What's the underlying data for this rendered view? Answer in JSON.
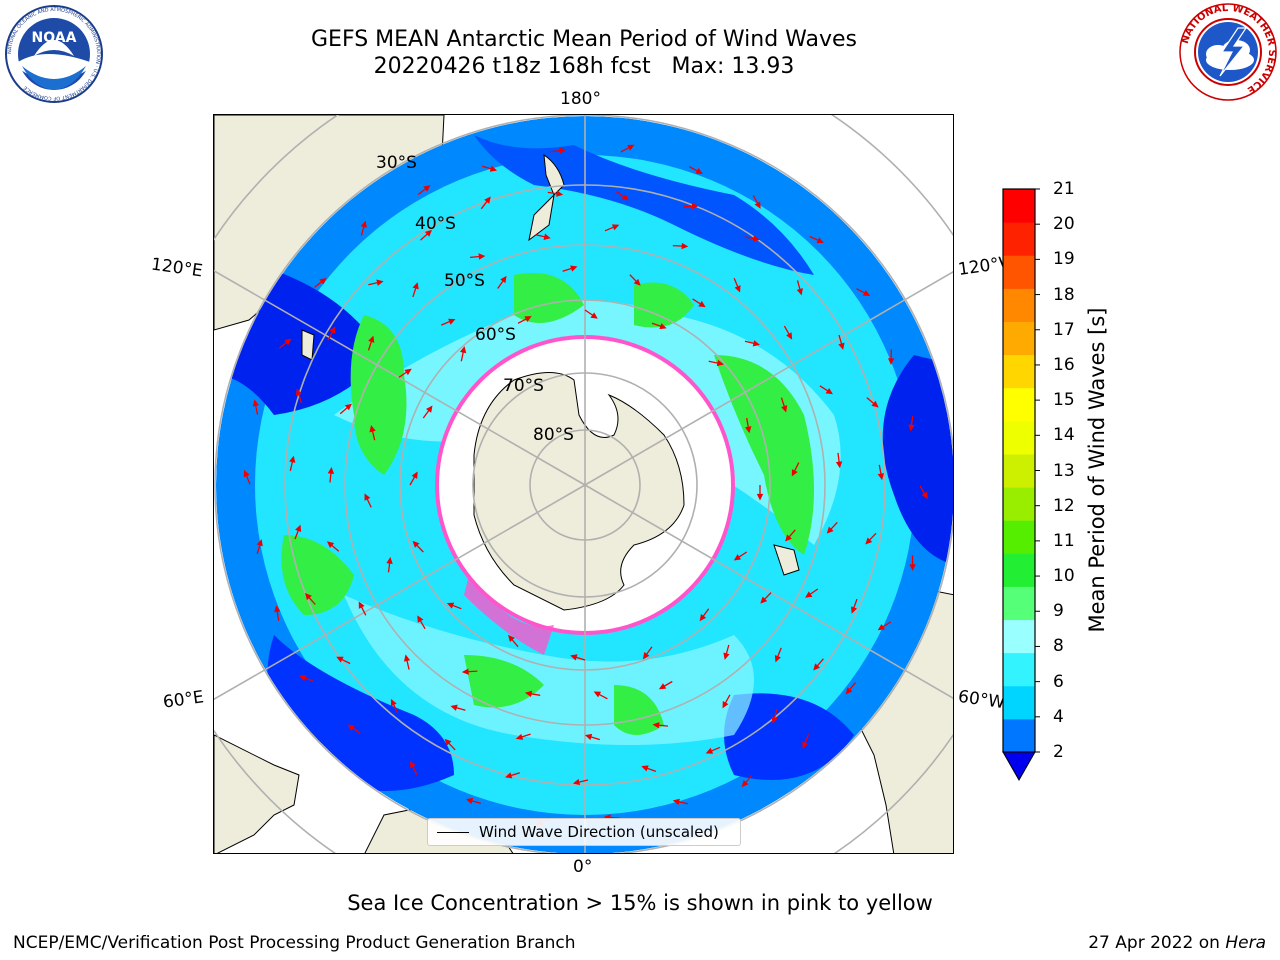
{
  "header": {
    "title_line1": "GEFS MEAN Antarctic Mean Period of Wind Waves",
    "title_line2": "20220426 t18z 168h fcst   Max: 13.93"
  },
  "logos": {
    "left": {
      "name": "noaa-logo",
      "text": "NOAA",
      "ring_text": "NATIONAL OCEANIC AND ATMOSPHERIC ADMINISTRATION · U.S. DEPARTMENT OF COMMERCE"
    },
    "right": {
      "name": "nws-logo",
      "ring_text": "NATIONAL WEATHER SERVICE"
    }
  },
  "map": {
    "longitude_labels": {
      "top": "180°",
      "bottom": "0°",
      "left_upper": "120°E",
      "left_lower": "60°E",
      "right_upper": "120°W",
      "right_lower": "60°W"
    },
    "latitude_labels": [
      "30°S",
      "40°S",
      "50°S",
      "60°S",
      "70°S",
      "80°S"
    ],
    "legend_label": "Wind Wave Direction (unscaled)",
    "colors": {
      "land": "#eeecda",
      "ocean_deep": "#0022ee",
      "ocean_mid": "#0088ff",
      "ocean_light": "#22e5ff",
      "ocean_pale": "#8dfaff",
      "green": "#33ee44",
      "arrow": "#ee0000",
      "ice_pink": "#ff55cc",
      "grid": "#b0b0b0"
    }
  },
  "colorbar": {
    "label": "Mean Period of Wind Waves [s]",
    "ticks": [
      "21",
      "20",
      "19",
      "18",
      "17",
      "16",
      "15",
      "14",
      "13",
      "12",
      "11",
      "10",
      "9",
      "8",
      "6",
      "4",
      "2"
    ],
    "colors": [
      "#0000ee",
      "#0077ff",
      "#00d5ff",
      "#33f3ff",
      "#99ffff",
      "#55ff77",
      "#22ee33",
      "#55ee00",
      "#99ee00",
      "#ccf000",
      "#eeff00",
      "#ffff00",
      "#ffd600",
      "#ffaa00",
      "#ff8800",
      "#ff5500",
      "#ff2200",
      "#ff0000"
    ]
  },
  "caption": "Sea Ice Concentration > 15% is shown in pink to yellow",
  "footer": {
    "left": "NCEP/EMC/Verification Post Processing Product Generation Branch",
    "right_date": "27 Apr 2022 on",
    "right_host": "Hera"
  }
}
